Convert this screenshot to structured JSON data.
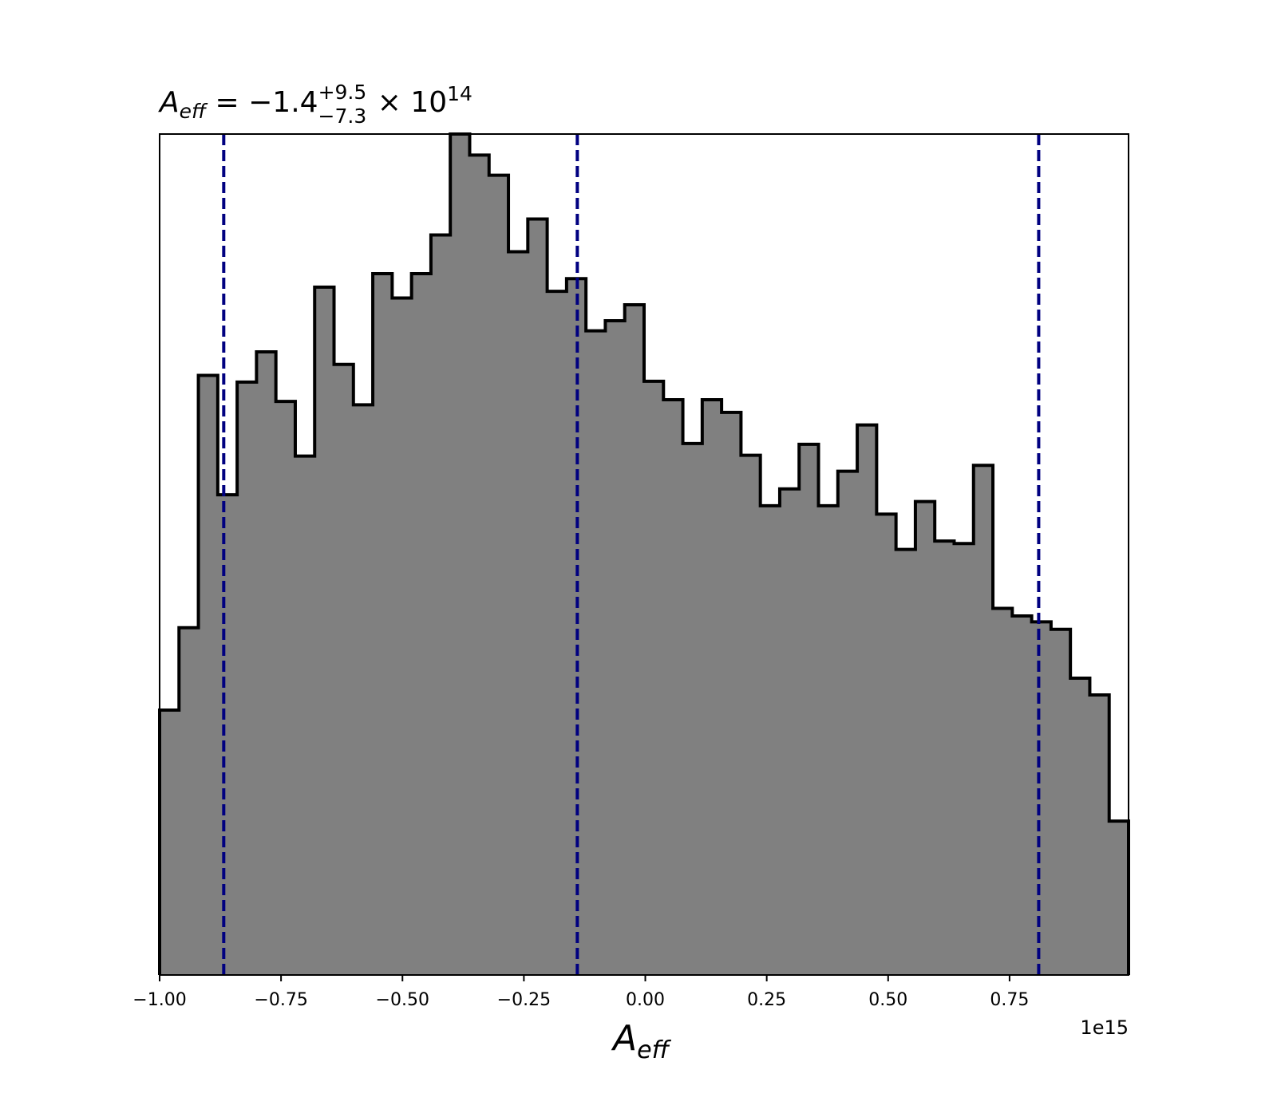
{
  "chart_data": {
    "type": "histogram",
    "title": {
      "symbol_main": "A",
      "symbol_sub": "eff",
      "equals": " = ",
      "median": "−1.4",
      "upper_err": "+9.5",
      "lower_err": "−7.3",
      "times": " × 10",
      "exponent": "14"
    },
    "xlabel": {
      "main": "A",
      "sub": "eff"
    },
    "x_offset_label": "1e15",
    "xlim": [
      -1.0,
      0.995
    ],
    "ylim": [
      0,
      1.0
    ],
    "y_ticks_shown": false,
    "grid": false,
    "x_ticks": [
      -1.0,
      -0.75,
      -0.5,
      -0.25,
      0.0,
      0.25,
      0.5,
      0.75
    ],
    "x_tick_labels": [
      "−1.00",
      "−0.75",
      "−0.50",
      "−0.25",
      "0.00",
      "0.25",
      "0.50",
      "0.75"
    ],
    "bin_start": -1.0,
    "bin_width": 0.0399,
    "bin_heights": [
      0.315,
      0.413,
      0.713,
      0.571,
      0.705,
      0.741,
      0.682,
      0.617,
      0.818,
      0.726,
      0.678,
      0.834,
      0.805,
      0.834,
      0.88,
      1.0,
      0.975,
      0.951,
      0.86,
      0.899,
      0.813,
      0.828,
      0.766,
      0.778,
      0.797,
      0.706,
      0.684,
      0.632,
      0.684,
      0.669,
      0.618,
      0.558,
      0.578,
      0.631,
      0.558,
      0.599,
      0.654,
      0.548,
      0.506,
      0.563,
      0.516,
      0.513,
      0.606,
      0.436,
      0.427,
      0.42,
      0.411,
      0.353,
      0.333,
      0.183
    ],
    "hist_fill": "#808080",
    "hist_edge": "#000000",
    "quantile_lines": [
      -0.868,
      -0.14,
      0.81
    ],
    "quantile_color": "#000080"
  }
}
